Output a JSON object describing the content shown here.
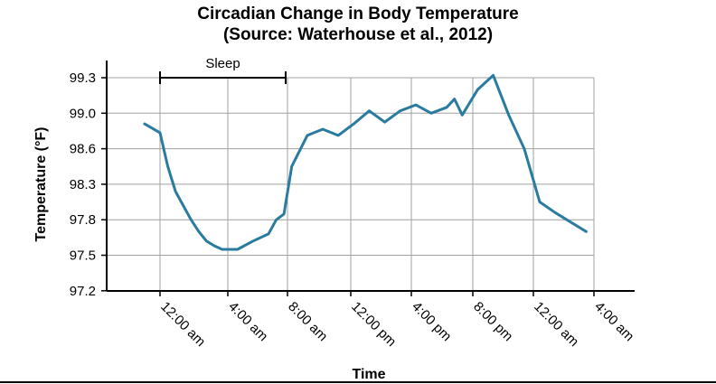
{
  "chart_data": {
    "type": "line",
    "title": "Circadian Change in Body Temperature",
    "subtitle": "(Source: Waterhouse et al., 2012)",
    "xlabel": "Time",
    "ylabel": "Temperature (°F)",
    "y_ticks": [
      "99.3",
      "99.0",
      "98.6",
      "98.3",
      "97.8",
      "97.5",
      "97.2"
    ],
    "x_ticks": [
      "12:00 am",
      "4:00 am",
      "8:00 am",
      "12:00 pm",
      "4:00 pm",
      "8:00 pm",
      "12:00 am",
      "4:00 am"
    ],
    "grid": true,
    "annotation": {
      "label": "Sleep",
      "from": "12:00 am",
      "to": "8:00 am"
    },
    "series": [
      {
        "name": "Body temperature",
        "color": "#2a7ba0",
        "x_hours": [
          -1,
          0,
          0.5,
          1,
          1.5,
          2,
          2.5,
          3,
          3.5,
          4,
          5,
          6,
          7,
          7.5,
          8,
          8.5,
          9.5,
          10.5,
          11.5,
          12.5,
          13.5,
          14.5,
          15.5,
          16.5,
          17.5,
          18.5,
          19,
          19.5,
          20.5,
          21.5,
          22.5,
          23.5,
          24.5,
          25.5,
          27.5
        ],
        "values": [
          98.88,
          98.78,
          98.45,
          98.2,
          98.0,
          97.8,
          97.7,
          97.62,
          97.58,
          97.55,
          97.55,
          97.62,
          97.68,
          97.8,
          97.88,
          98.45,
          98.75,
          98.82,
          98.75,
          98.88,
          99.02,
          98.9,
          99.02,
          99.07,
          99.0,
          99.05,
          99.12,
          98.98,
          99.2,
          99.32,
          98.98,
          98.6,
          98.05,
          97.9,
          97.7
        ]
      }
    ]
  }
}
